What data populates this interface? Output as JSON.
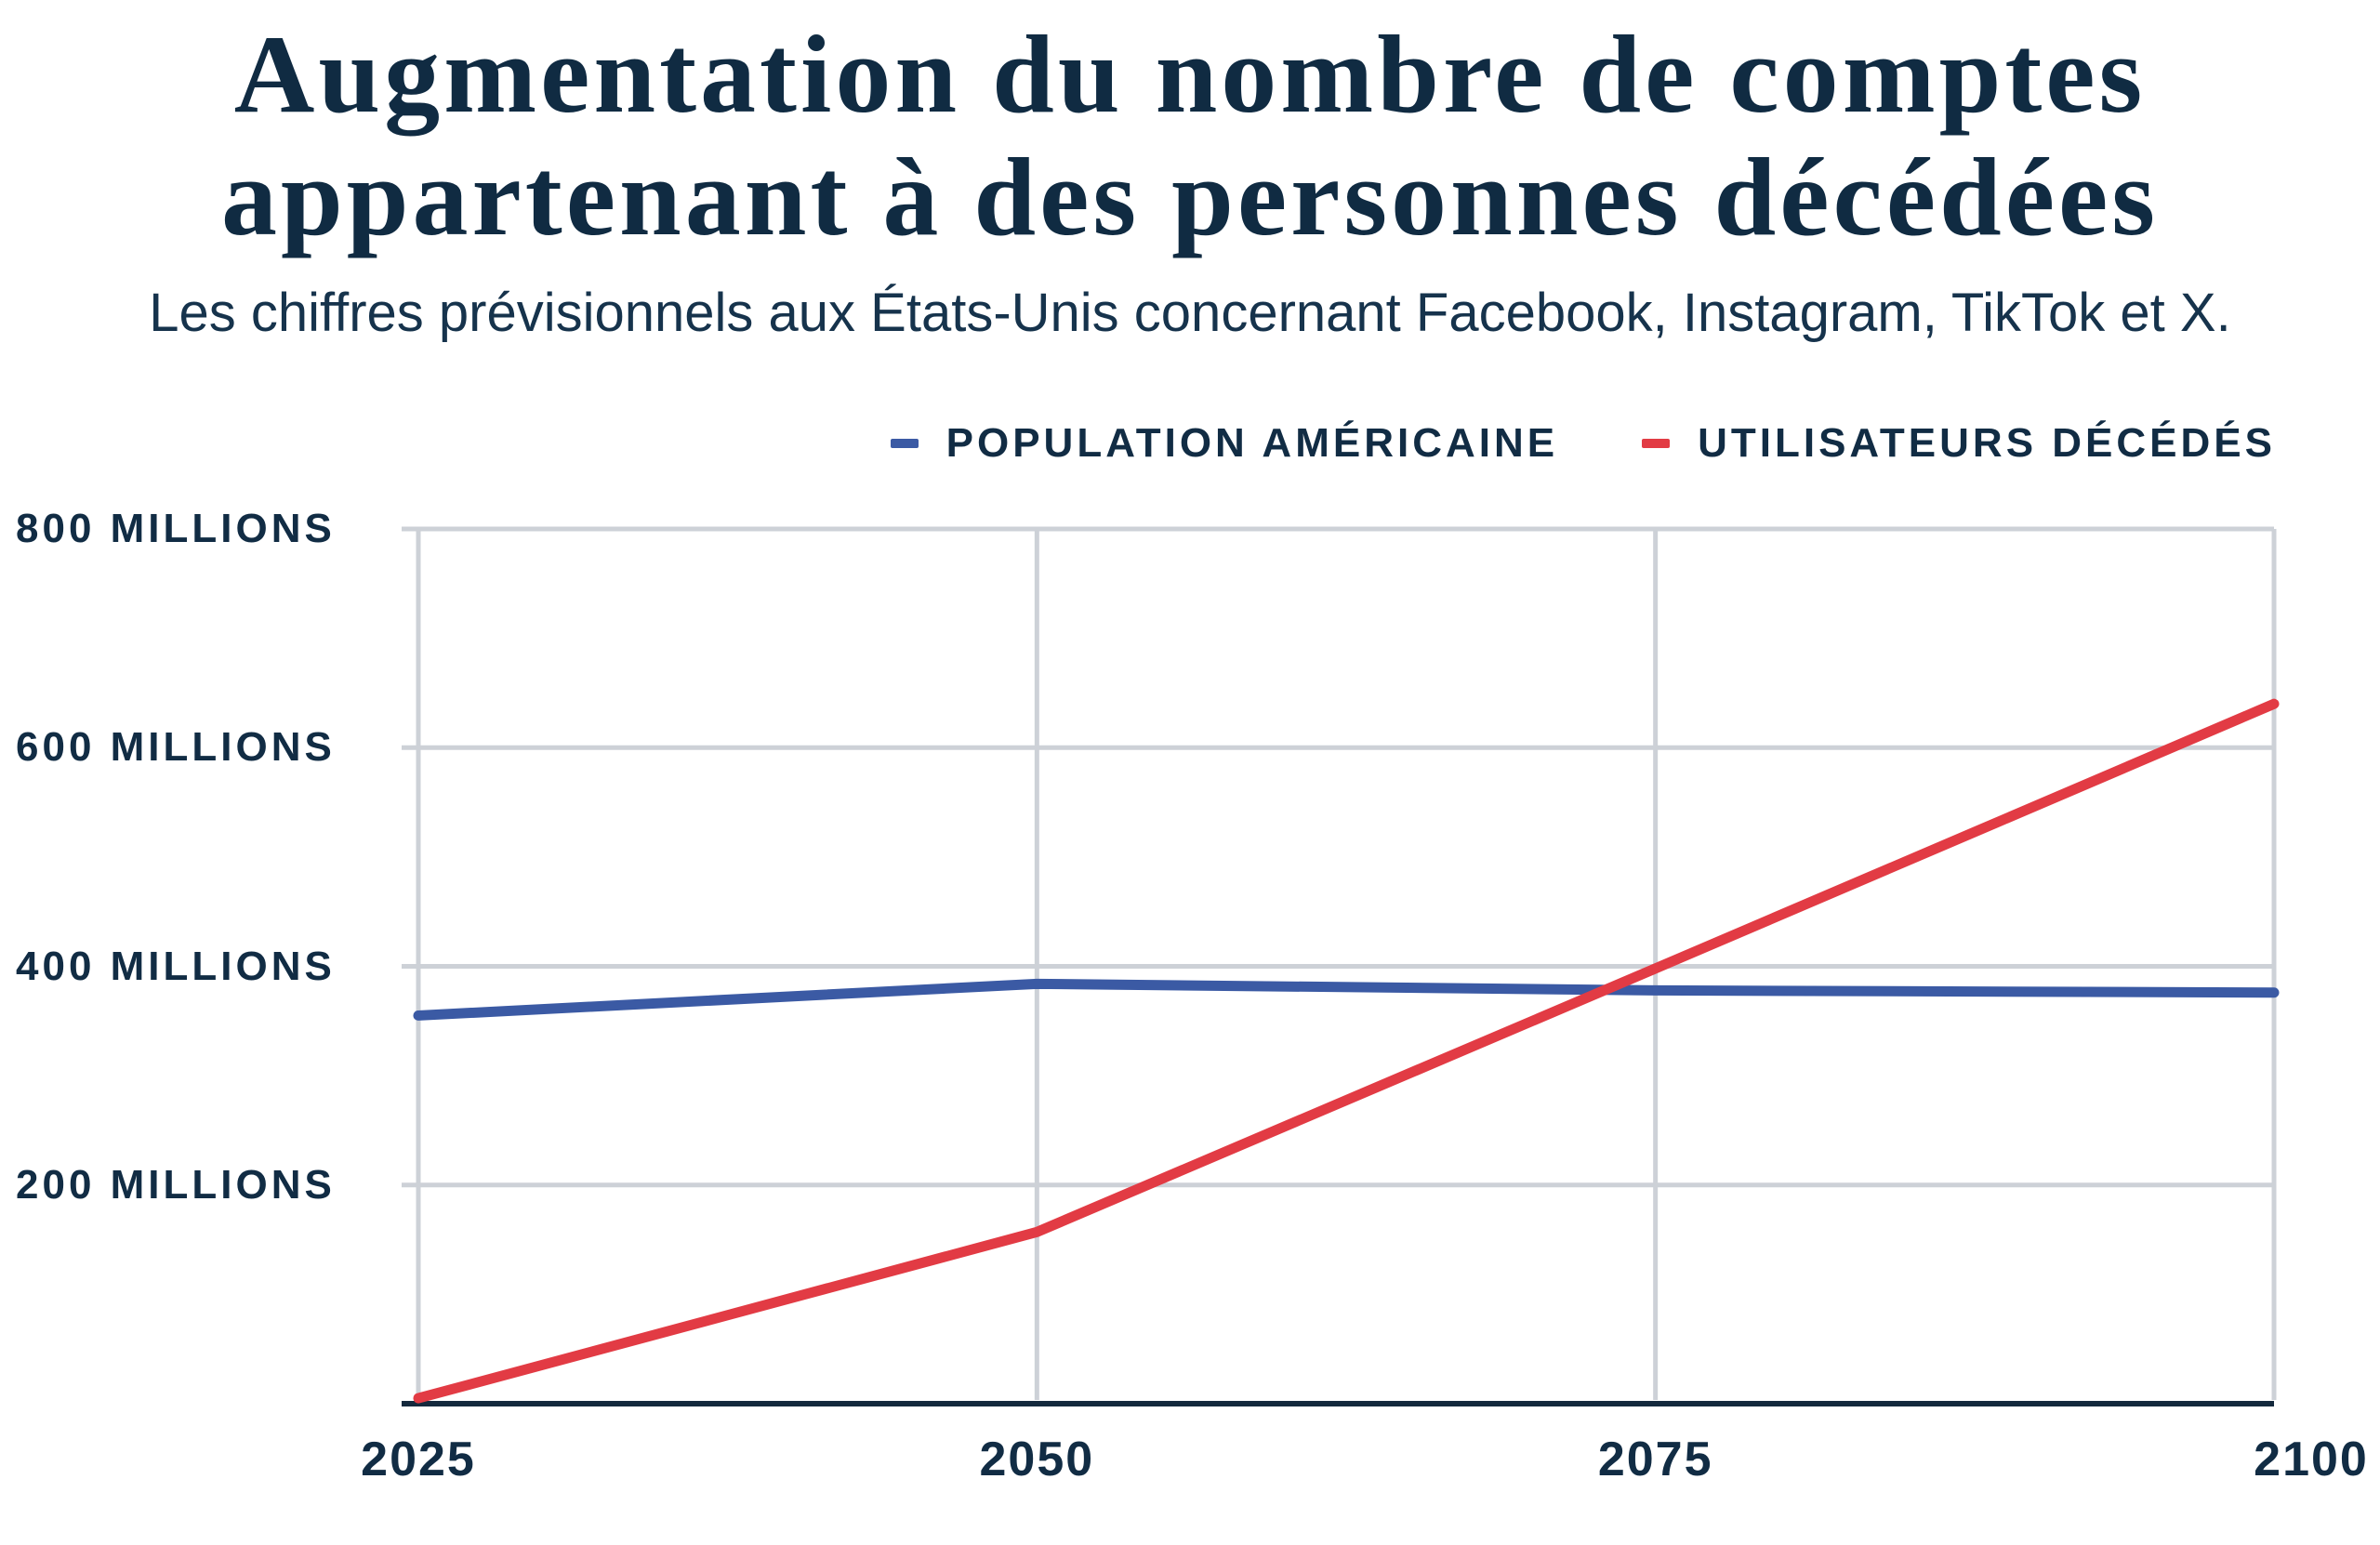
{
  "title": {
    "line1": "Augmentation du nombre de comptes",
    "line2": "appartenant à des personnes décédées"
  },
  "subtitle": "Les chiffres prévisionnels aux États-Unis concernant Facebook, Instagram, TikTok et X.",
  "legend": [
    {
      "label": "POPULATION AMÉRICAINE",
      "color": "#3b5aa4"
    },
    {
      "label": "UTILISATEURS DÉCÉDÉS",
      "color": "#e23b44"
    }
  ],
  "colors": {
    "navy_text": "#112c44",
    "grid": "#cdd1d7",
    "axis_line": "#14293d",
    "background": "#ffffff",
    "population_blue": "#3b5aa4",
    "deceased_red": "#e23b44"
  },
  "chart_data": {
    "type": "line",
    "title": "Augmentation du nombre de comptes appartenant à des personnes décédées",
    "subtitle": "Les chiffres prévisionnels aux États-Unis concernant Facebook, Instagram, TikTok et X.",
    "x": [
      2025,
      2050,
      2075,
      2100
    ],
    "x_tick_labels": [
      "2025",
      "2050",
      "2075",
      "2100"
    ],
    "y_ticks": [
      {
        "value": 800,
        "label": "800 MILLIONS"
      },
      {
        "value": 600,
        "label": "600 MILLIONS"
      },
      {
        "value": 400,
        "label": "400 MILLIONS"
      },
      {
        "value": 200,
        "label": "200 MILLIONS"
      }
    ],
    "ylim": [
      0,
      800
    ],
    "unit": "millions",
    "grid": true,
    "legend_position": "top-right",
    "series": [
      {
        "name": "POPULATION AMÉRICAINE",
        "color": "#3b5aa4",
        "values": [
          355,
          384,
          378,
          376
        ]
      },
      {
        "name": "UTILISATEURS DÉCÉDÉS",
        "color": "#e23b44",
        "values": [
          5,
          157,
          398,
          640
        ]
      }
    ]
  }
}
